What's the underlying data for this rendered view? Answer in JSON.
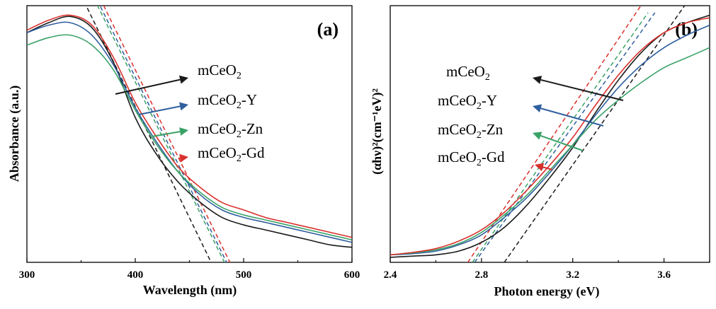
{
  "colors": {
    "mCeO2": "#1a1a1a",
    "mCeO2-Y": "#2f5f9e",
    "mCeO2-Zn": "#3aa267",
    "mCeO2-Gd": "#d9302c"
  },
  "chart_data": [
    {
      "panel": "(a)",
      "type": "line",
      "xlabel": "Wavelength (nm)",
      "ylabel": "Absorbance (a.u.)",
      "xlim": [
        300,
        600
      ],
      "ylim": [
        0,
        1
      ],
      "x_ticks": [
        300,
        400,
        500,
        600
      ],
      "x_tick_labels": [
        "300",
        "400",
        "500",
        "600"
      ],
      "y_ticks_labeled": false,
      "grid": false,
      "legend_entries": [
        {
          "sup": "mCe",
          "elem": "O",
          "sub": "2",
          "suffix": "",
          "series": "mCeO2"
        },
        {
          "sup": "mCe",
          "elem": "O",
          "sub": "2",
          "suffix": "-Y",
          "series": "mCeO2-Y"
        },
        {
          "sup": "mCe",
          "elem": "O",
          "sub": "2",
          "suffix": "-Zn",
          "series": "mCeO2-Zn"
        },
        {
          "sup": "mCe",
          "elem": "O",
          "sub": "2",
          "suffix": "-Gd",
          "series": "mCeO2-Gd"
        }
      ],
      "series": [
        {
          "name": "mCeO2",
          "x": [
            300,
            320,
            340,
            360,
            380,
            400,
            420,
            440,
            460,
            480,
            500,
            520,
            540,
            560,
            580,
            600
          ],
          "y": [
            0.92,
            0.96,
            0.985,
            0.94,
            0.8,
            0.58,
            0.43,
            0.32,
            0.24,
            0.18,
            0.15,
            0.13,
            0.11,
            0.09,
            0.07,
            0.06
          ]
        },
        {
          "name": "mCeO2-Y",
          "x": [
            300,
            320,
            340,
            360,
            380,
            400,
            420,
            440,
            460,
            480,
            500,
            520,
            540,
            560,
            580,
            600
          ],
          "y": [
            0.92,
            0.95,
            0.96,
            0.91,
            0.79,
            0.62,
            0.48,
            0.36,
            0.27,
            0.21,
            0.18,
            0.16,
            0.14,
            0.12,
            0.1,
            0.08
          ]
        },
        {
          "name": "mCeO2-Zn",
          "x": [
            300,
            320,
            340,
            360,
            380,
            400,
            420,
            440,
            460,
            480,
            500,
            520,
            540,
            560,
            580,
            600
          ],
          "y": [
            0.87,
            0.9,
            0.91,
            0.87,
            0.77,
            0.61,
            0.47,
            0.36,
            0.28,
            0.22,
            0.19,
            0.17,
            0.15,
            0.13,
            0.11,
            0.09
          ]
        },
        {
          "name": "mCeO2-Gd",
          "x": [
            300,
            320,
            340,
            360,
            380,
            400,
            420,
            440,
            460,
            480,
            500,
            520,
            540,
            560,
            580,
            600
          ],
          "y": [
            0.93,
            0.97,
            0.99,
            0.95,
            0.82,
            0.64,
            0.5,
            0.38,
            0.3,
            0.24,
            0.21,
            0.18,
            0.16,
            0.14,
            0.12,
            0.1
          ]
        }
      ],
      "fit_lines": [
        {
          "series": "mCeO2",
          "x": [
            350,
            470
          ],
          "y": [
            1.07,
            0.0
          ]
        },
        {
          "series": "mCeO2-Y",
          "x": [
            365,
            490
          ],
          "y": [
            1.05,
            -0.05
          ]
        },
        {
          "series": "mCeO2-Zn",
          "x": [
            365,
            488
          ],
          "y": [
            1.03,
            -0.05
          ]
        },
        {
          "series": "mCeO2-Gd",
          "x": [
            365,
            493
          ],
          "y": [
            1.08,
            -0.05
          ]
        }
      ]
    },
    {
      "panel": "(b)",
      "type": "line",
      "xlabel": "Photon energy (eV)",
      "ylabel": "(αhν)²(cm⁻¹eV)²",
      "xlim": [
        2.4,
        3.8
      ],
      "ylim": [
        0,
        1
      ],
      "x_ticks": [
        2.4,
        2.8,
        3.2,
        3.6
      ],
      "x_tick_labels": [
        "2.4",
        "2.8",
        "3.2",
        "3.6"
      ],
      "y_ticks_labeled": false,
      "grid": false,
      "legend_entries": [
        {
          "sup": "mCe",
          "elem": "O",
          "sub": "2",
          "suffix": "",
          "series": "mCeO2"
        },
        {
          "sup": "mCe",
          "elem": "O",
          "sub": "2",
          "suffix": "-Y",
          "series": "mCeO2-Y"
        },
        {
          "sup": "mCe",
          "elem": "O",
          "sub": "2",
          "suffix": "-Zn",
          "series": "mCeO2-Zn"
        },
        {
          "sup": "mCe",
          "elem": "O",
          "sub": "2",
          "suffix": "-Gd",
          "series": "mCeO2-Gd"
        }
      ],
      "series": [
        {
          "name": "mCeO2",
          "x": [
            2.4,
            2.5,
            2.6,
            2.7,
            2.8,
            2.9,
            3.0,
            3.1,
            3.2,
            3.3,
            3.4,
            3.5,
            3.6,
            3.7,
            3.8
          ],
          "y": [
            0.02,
            0.025,
            0.03,
            0.045,
            0.08,
            0.14,
            0.23,
            0.34,
            0.46,
            0.6,
            0.73,
            0.84,
            0.92,
            0.96,
            0.99
          ]
        },
        {
          "name": "mCeO2-Y",
          "x": [
            2.4,
            2.5,
            2.6,
            2.7,
            2.8,
            2.9,
            3.0,
            3.1,
            3.2,
            3.3,
            3.4,
            3.5,
            3.6,
            3.7,
            3.8
          ],
          "y": [
            0.03,
            0.035,
            0.045,
            0.07,
            0.11,
            0.18,
            0.26,
            0.36,
            0.47,
            0.59,
            0.7,
            0.79,
            0.86,
            0.91,
            0.95
          ]
        },
        {
          "name": "mCeO2-Zn",
          "x": [
            2.4,
            2.5,
            2.6,
            2.7,
            2.8,
            2.9,
            3.0,
            3.1,
            3.2,
            3.3,
            3.4,
            3.5,
            3.6,
            3.7,
            3.8
          ],
          "y": [
            0.03,
            0.038,
            0.05,
            0.075,
            0.12,
            0.19,
            0.27,
            0.37,
            0.47,
            0.57,
            0.65,
            0.72,
            0.78,
            0.82,
            0.86
          ]
        },
        {
          "name": "mCeO2-Gd",
          "x": [
            2.4,
            2.5,
            2.6,
            2.7,
            2.8,
            2.9,
            3.0,
            3.1,
            3.2,
            3.3,
            3.4,
            3.5,
            3.6,
            3.7,
            3.8
          ],
          "y": [
            0.03,
            0.04,
            0.055,
            0.085,
            0.13,
            0.2,
            0.29,
            0.39,
            0.5,
            0.63,
            0.75,
            0.85,
            0.92,
            0.96,
            0.98
          ]
        }
      ],
      "fit_lines": [
        {
          "series": "mCeO2",
          "x": [
            2.9,
            3.73
          ],
          "y": [
            0.0,
            1.08
          ]
        },
        {
          "series": "mCeO2-Y",
          "x": [
            2.77,
            3.56
          ],
          "y": [
            0.0,
            1.0
          ]
        },
        {
          "series": "mCeO2-Zn",
          "x": [
            2.76,
            3.53
          ],
          "y": [
            0.0,
            1.0
          ]
        },
        {
          "series": "mCeO2-Gd",
          "x": [
            2.74,
            3.5
          ],
          "y": [
            0.0,
            1.03
          ]
        }
      ]
    }
  ]
}
